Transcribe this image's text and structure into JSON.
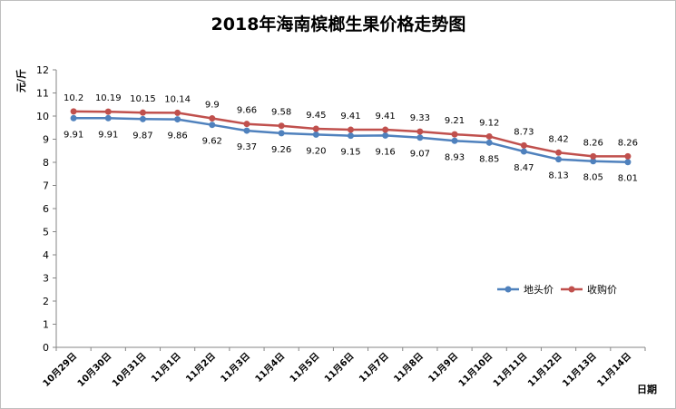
{
  "chart_data": {
    "type": "line",
    "title": "2018年海南槟榔生果价格走势图",
    "xlabel": "日期",
    "ylabel": "元/斤",
    "ylim": [
      0,
      12
    ],
    "yticks": [
      0,
      1,
      2,
      3,
      4,
      5,
      6,
      7,
      8,
      9,
      10,
      11,
      12
    ],
    "grid": false,
    "legend_position": "right-middle",
    "categories": [
      "10月29日",
      "10月30日",
      "10月31日",
      "11月1日",
      "11月2日",
      "11月3日",
      "11月4日",
      "11月5日",
      "11月6日",
      "11月7日",
      "11月8日",
      "11月9日",
      "11月10日",
      "11月11日",
      "11月12日",
      "11月13日",
      "11月14日"
    ],
    "series": [
      {
        "name": "地头价",
        "color": "#4f81bd",
        "values": [
          9.91,
          9.91,
          9.87,
          9.86,
          9.62,
          9.37,
          9.26,
          9.2,
          9.15,
          9.16,
          9.07,
          8.93,
          8.85,
          8.47,
          8.13,
          8.05,
          8.01
        ],
        "labels": [
          "9.91",
          "9.91",
          "9.87",
          "9.86",
          "9.62",
          "9.37",
          "9.26",
          "9.20",
          "9.15",
          "9.16",
          "9.07",
          "8.93",
          "8.85",
          "8.47",
          "8.13",
          "8.05",
          "8.01"
        ]
      },
      {
        "name": "收购价",
        "color": "#c0504d",
        "values": [
          10.2,
          10.19,
          10.15,
          10.14,
          9.9,
          9.66,
          9.58,
          9.45,
          9.41,
          9.41,
          9.33,
          9.21,
          9.12,
          8.73,
          8.42,
          8.26,
          8.26
        ],
        "labels": [
          "10.2",
          "10.19",
          "10.15",
          "10.14",
          "9.9",
          "9.66",
          "9.58",
          "9.45",
          "9.41",
          "9.41",
          "9.33",
          "9.21",
          "9.12",
          "8.73",
          "8.42",
          "8.26",
          "8.26"
        ]
      }
    ]
  }
}
